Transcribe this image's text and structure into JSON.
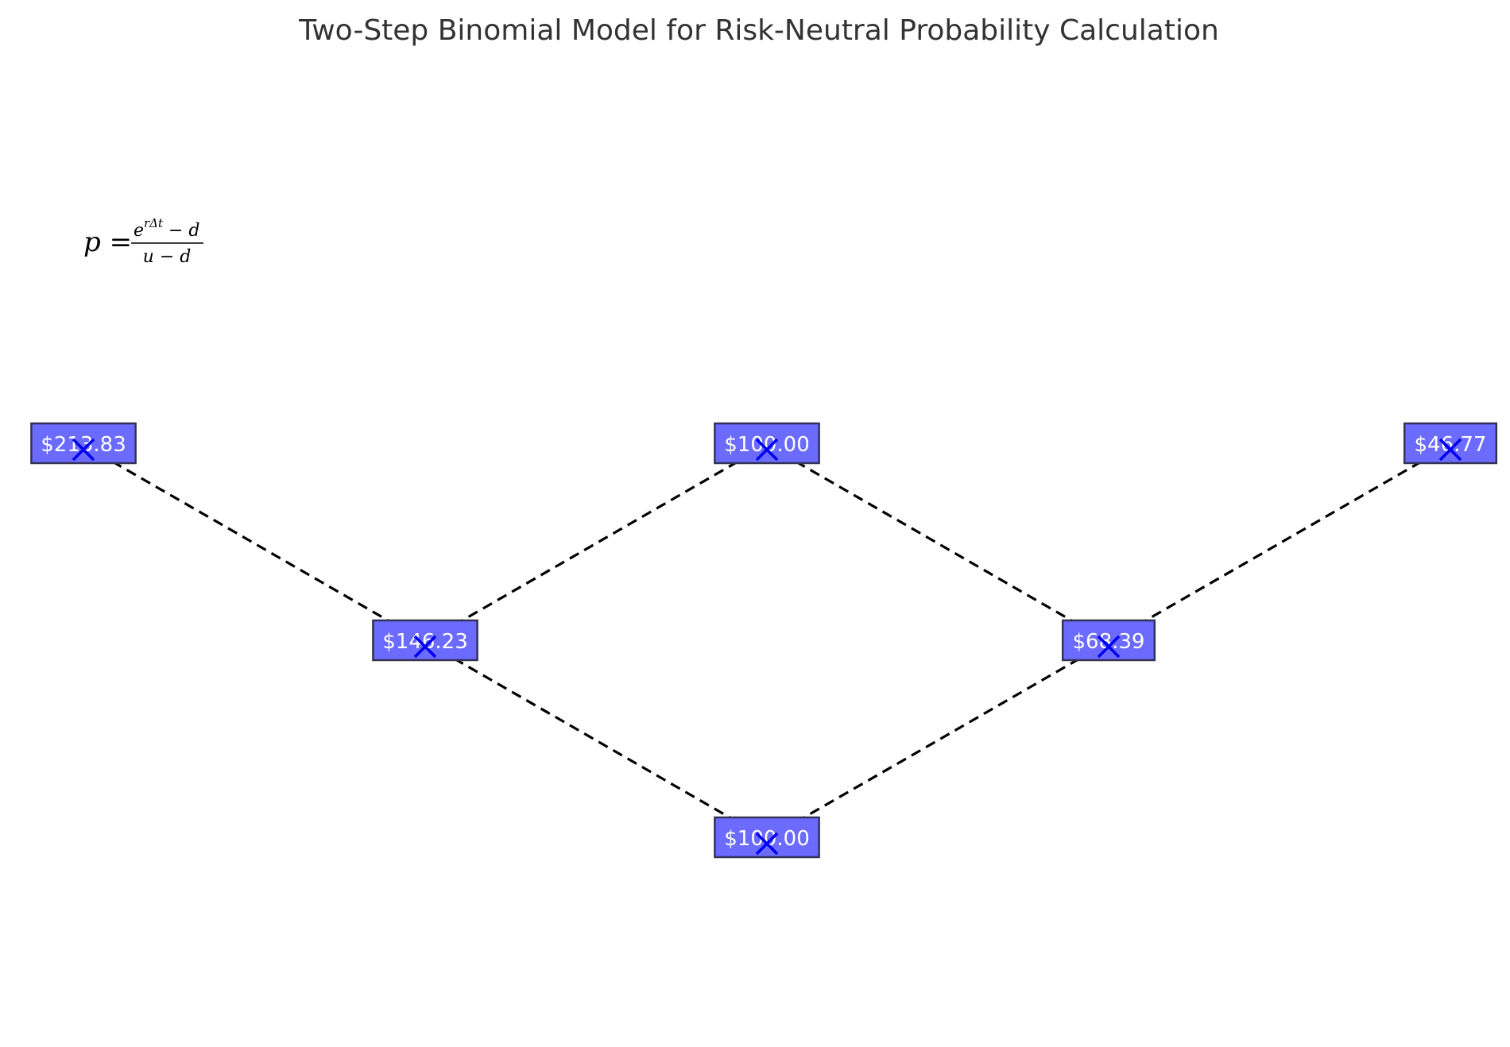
{
  "title": "Two-Step Binomial Model for Risk-Neutral Probability Calculation",
  "formula": {
    "lhs": "p =",
    "numerator_base": "e",
    "numerator_exponent": "rΔt",
    "numerator_rest": "− d",
    "denominator": "u − d"
  },
  "colors": {
    "node_fill": "#6b6bff",
    "node_border": "#333355",
    "node_text": "#ffffff",
    "edge": "#000000",
    "marker": "#0000ee"
  },
  "nodes": [
    {
      "id": "n1",
      "label": "$213.83",
      "step": 0,
      "level": 1
    },
    {
      "id": "n2",
      "label": "$146.23",
      "step": 1,
      "level": 0
    },
    {
      "id": "n3",
      "label": "$100.00",
      "step": 2,
      "level": 1
    },
    {
      "id": "n4",
      "label": "$100.00",
      "step": 2,
      "level": -1
    },
    {
      "id": "n5",
      "label": "$68.39",
      "step": 3,
      "level": 0
    },
    {
      "id": "n6",
      "label": "$46.77",
      "step": 4,
      "level": 1
    }
  ],
  "edges": [
    {
      "from": "n1",
      "to": "n2"
    },
    {
      "from": "n2",
      "to": "n3"
    },
    {
      "from": "n2",
      "to": "n4"
    },
    {
      "from": "n3",
      "to": "n5"
    },
    {
      "from": "n4",
      "to": "n5"
    },
    {
      "from": "n5",
      "to": "n6"
    }
  ]
}
